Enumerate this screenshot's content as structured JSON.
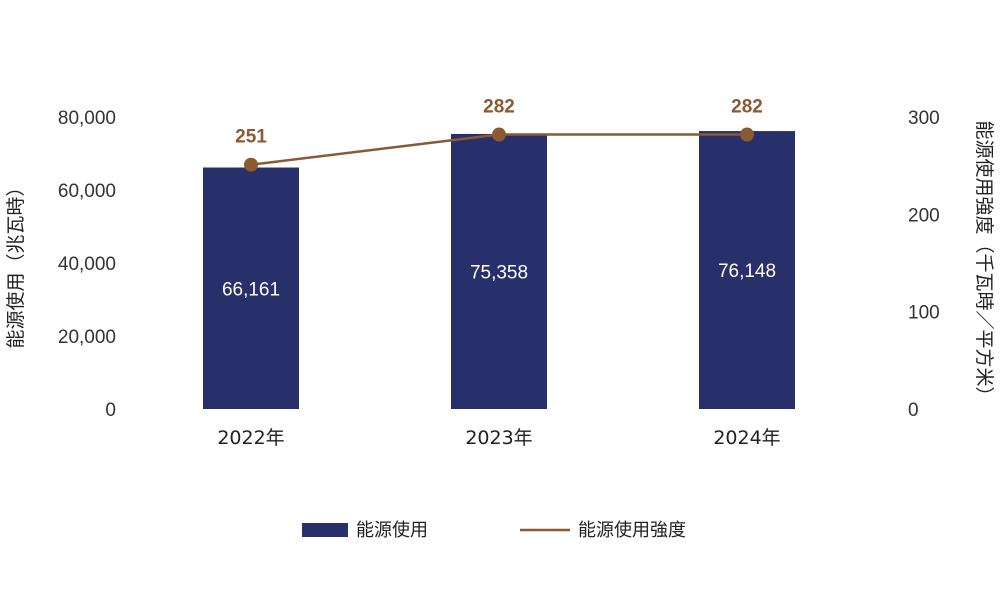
{
  "chart_data": {
    "type": "bar",
    "categories": [
      "2022年",
      "2023年",
      "2024年"
    ],
    "series": [
      {
        "name": "能源使用",
        "type": "bar",
        "axis": "left",
        "color": "#27306b",
        "values": [
          66161,
          75358,
          76148
        ],
        "labels": [
          "66,161",
          "75,358",
          "76,148"
        ]
      },
      {
        "name": "能源使用強度",
        "type": "line",
        "axis": "right",
        "color": "#8a5a32",
        "values": [
          251,
          282,
          282
        ],
        "labels": [
          "251",
          "282",
          "282"
        ]
      }
    ],
    "ylabel": "能源使用（兆瓦時）",
    "y2label": "能源使用強度（千瓦時／平方米）",
    "ylim": [
      0,
      80000
    ],
    "y2lim": [
      0,
      300
    ],
    "yticks": [
      0,
      20000,
      40000,
      60000,
      80000
    ],
    "ytick_labels": [
      "0",
      "20,000",
      "40,000",
      "60,000",
      "80,000"
    ],
    "y2ticks": [
      0,
      100,
      200,
      300
    ],
    "y2tick_labels": [
      "0",
      "100",
      "200",
      "300"
    ],
    "grid": false,
    "legend_position": "bottom"
  }
}
